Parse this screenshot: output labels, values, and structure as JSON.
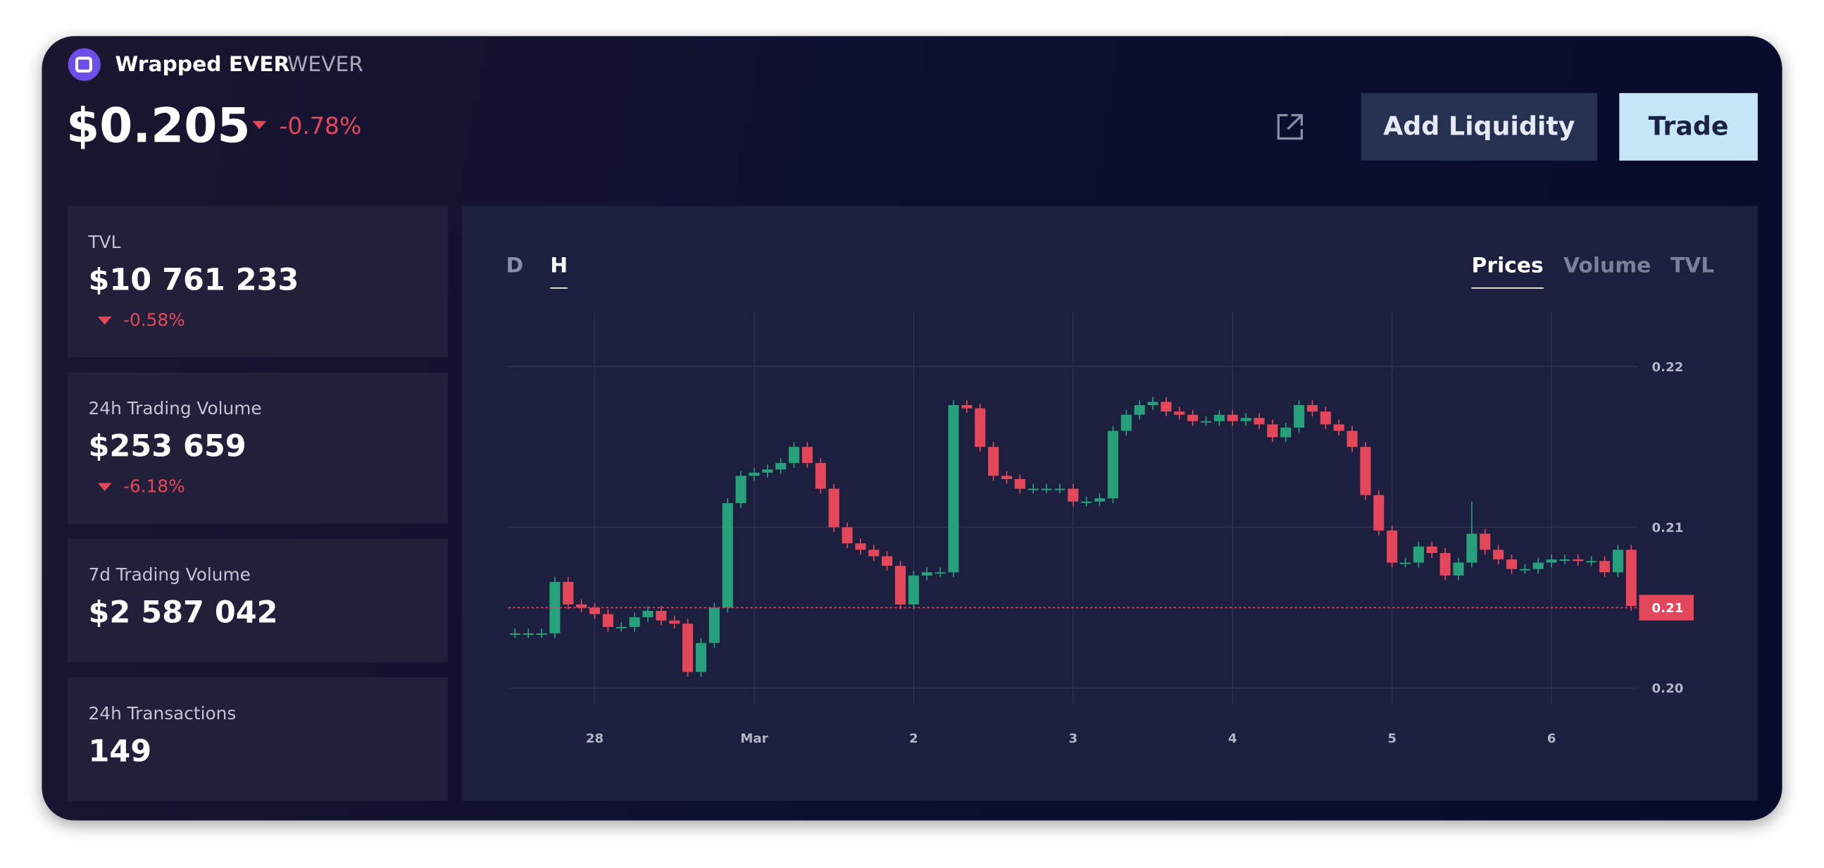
{
  "header": {
    "name": "Wrapped EVER",
    "symbol": "WEVER",
    "price": "$0.205",
    "change": "-0.78%"
  },
  "buttons": {
    "add_liquidity": "Add Liquidity",
    "trade": "Trade"
  },
  "stats": [
    {
      "label": "TVL",
      "value": "$10 761 233",
      "change": "-0.58%"
    },
    {
      "label": "24h Trading Volume",
      "value": "$253 659",
      "change": "-6.18%"
    },
    {
      "label": "7d Trading Volume",
      "value": "$2 587 042"
    },
    {
      "label": "24h Transactions",
      "value": "149"
    }
  ],
  "tabs": {
    "periods": [
      "D",
      "H"
    ],
    "metrics": [
      "Prices",
      "Volume",
      "TVL"
    ]
  },
  "chart_data": {
    "type": "candlestick",
    "up_color": "#26a17b",
    "down_color": "#e5475a",
    "grid": true,
    "xlim": [
      -1,
      169
    ],
    "ylim": [
      0.199,
      0.2234
    ],
    "xticks": [
      {
        "value": 12,
        "label": "28"
      },
      {
        "value": 36,
        "label": "Mar"
      },
      {
        "value": 60,
        "label": "2"
      },
      {
        "value": 84,
        "label": "3"
      },
      {
        "value": 108,
        "label": "4"
      },
      {
        "value": 132,
        "label": "5"
      },
      {
        "value": 156,
        "label": "6"
      }
    ],
    "yticks": [
      {
        "value": 0.2,
        "label": "0.20"
      },
      {
        "value": 0.21,
        "label": "0.21"
      },
      {
        "value": 0.22,
        "label": "0.22"
      }
    ],
    "last_price": 0.205,
    "last_price_label": "0.21",
    "x": [
      0,
      2,
      4,
      6,
      8,
      10,
      12,
      14,
      16,
      18,
      20,
      22,
      24,
      26,
      28,
      30,
      32,
      34,
      36,
      38,
      40,
      42,
      44,
      46,
      48,
      50,
      52,
      54,
      56,
      58,
      60,
      62,
      64,
      66,
      68,
      70,
      72,
      74,
      76,
      78,
      80,
      82,
      84,
      86,
      88,
      90,
      92,
      94,
      96,
      98,
      100,
      102,
      104,
      106,
      108,
      110,
      112,
      114,
      116,
      118,
      120,
      122,
      124,
      126,
      128,
      130,
      132,
      134,
      136,
      138,
      140,
      142,
      144,
      146,
      148,
      150,
      152,
      154,
      156,
      158,
      160,
      162,
      164,
      166,
      168
    ],
    "open": [
      0.2034,
      0.2034,
      0.2034,
      0.2034,
      0.2066,
      0.2052,
      0.205,
      0.2046,
      0.2038,
      0.2038,
      0.2044,
      0.2048,
      0.2042,
      0.204,
      0.201,
      0.2028,
      0.205,
      0.2115,
      0.2132,
      0.2134,
      0.2136,
      0.214,
      0.215,
      0.214,
      0.2124,
      0.21,
      0.209,
      0.2086,
      0.2082,
      0.2076,
      0.2052,
      0.207,
      0.2072,
      0.2072,
      0.2176,
      0.2174,
      0.215,
      0.2132,
      0.213,
      0.2124,
      0.2124,
      0.2124,
      0.2124,
      0.2116,
      0.2116,
      0.2118,
      0.216,
      0.217,
      0.2176,
      0.2178,
      0.2172,
      0.217,
      0.2166,
      0.2166,
      0.217,
      0.2166,
      0.2168,
      0.2164,
      0.2156,
      0.2162,
      0.2176,
      0.2172,
      0.2164,
      0.216,
      0.215,
      0.212,
      0.2098,
      0.2078,
      0.2078,
      0.2088,
      0.2084,
      0.207,
      0.2078,
      0.2096,
      0.2086,
      0.208,
      0.2074,
      0.2074,
      0.2078,
      0.208,
      0.208,
      0.2079,
      0.2079,
      0.2072,
      0.2086
    ],
    "high": [
      0.2037,
      0.2037,
      0.2037,
      0.2069,
      0.2069,
      0.2055,
      0.2053,
      0.2049,
      0.2041,
      0.2047,
      0.2051,
      0.2051,
      0.2045,
      0.2043,
      0.2031,
      0.2053,
      0.2118,
      0.2135,
      0.2137,
      0.2139,
      0.2143,
      0.2153,
      0.2153,
      0.2143,
      0.2127,
      0.2103,
      0.2093,
      0.2089,
      0.2085,
      0.2079,
      0.2073,
      0.2075,
      0.2075,
      0.2179,
      0.2179,
      0.2177,
      0.2153,
      0.2135,
      0.2133,
      0.2127,
      0.2127,
      0.2127,
      0.2127,
      0.2119,
      0.2121,
      0.2163,
      0.2173,
      0.2179,
      0.2181,
      0.2181,
      0.2175,
      0.2173,
      0.2169,
      0.2173,
      0.2173,
      0.2171,
      0.2171,
      0.2167,
      0.2165,
      0.2179,
      0.2179,
      0.2175,
      0.2167,
      0.2163,
      0.2153,
      0.2123,
      0.2101,
      0.2081,
      0.2091,
      0.2091,
      0.2087,
      0.2081,
      0.2116,
      0.2099,
      0.2089,
      0.2083,
      0.2077,
      0.2081,
      0.2083,
      0.2083,
      0.2083,
      0.2082,
      0.2082,
      0.2089,
      0.2089
    ],
    "low": [
      0.2031,
      0.2031,
      0.2031,
      0.2031,
      0.2049,
      0.2047,
      0.2043,
      0.2035,
      0.2035,
      0.2035,
      0.2041,
      0.2039,
      0.2037,
      0.2007,
      0.2007,
      0.2025,
      0.2047,
      0.2112,
      0.2129,
      0.2131,
      0.2133,
      0.2137,
      0.2137,
      0.2121,
      0.2097,
      0.2087,
      0.2083,
      0.2079,
      0.2073,
      0.2049,
      0.2049,
      0.2067,
      0.2069,
      0.2069,
      0.2171,
      0.2147,
      0.2129,
      0.2127,
      0.2121,
      0.2121,
      0.2121,
      0.2121,
      0.2113,
      0.2113,
      0.2113,
      0.2115,
      0.2157,
      0.2167,
      0.2173,
      0.2169,
      0.2167,
      0.2163,
      0.2163,
      0.2163,
      0.2163,
      0.2163,
      0.2161,
      0.2153,
      0.2153,
      0.2159,
      0.2169,
      0.2161,
      0.2157,
      0.2147,
      0.2117,
      0.2095,
      0.2075,
      0.2075,
      0.2075,
      0.2081,
      0.2067,
      0.2067,
      0.2075,
      0.2083,
      0.2077,
      0.2071,
      0.2071,
      0.2071,
      0.2075,
      0.2077,
      0.2076,
      0.2076,
      0.2069,
      0.2069,
      0.2048
    ],
    "close": [
      0.2034,
      0.2034,
      0.2034,
      0.2066,
      0.2052,
      0.205,
      0.2046,
      0.2038,
      0.2038,
      0.2044,
      0.2048,
      0.2042,
      0.204,
      0.201,
      0.2028,
      0.205,
      0.2115,
      0.2132,
      0.2134,
      0.2136,
      0.214,
      0.215,
      0.214,
      0.2124,
      0.21,
      0.209,
      0.2086,
      0.2082,
      0.2076,
      0.2052,
      0.207,
      0.2072,
      0.2072,
      0.2176,
      0.2174,
      0.215,
      0.2132,
      0.213,
      0.2124,
      0.2124,
      0.2124,
      0.2124,
      0.2116,
      0.2116,
      0.2118,
      0.216,
      0.217,
      0.2176,
      0.2178,
      0.2172,
      0.217,
      0.2166,
      0.2166,
      0.217,
      0.2166,
      0.2168,
      0.2164,
      0.2156,
      0.2162,
      0.2176,
      0.2172,
      0.2164,
      0.216,
      0.215,
      0.212,
      0.2098,
      0.2078,
      0.2078,
      0.2088,
      0.2084,
      0.207,
      0.2078,
      0.2096,
      0.2086,
      0.208,
      0.2074,
      0.2074,
      0.2078,
      0.208,
      0.208,
      0.2079,
      0.2079,
      0.2072,
      0.2086,
      0.2051
    ]
  }
}
